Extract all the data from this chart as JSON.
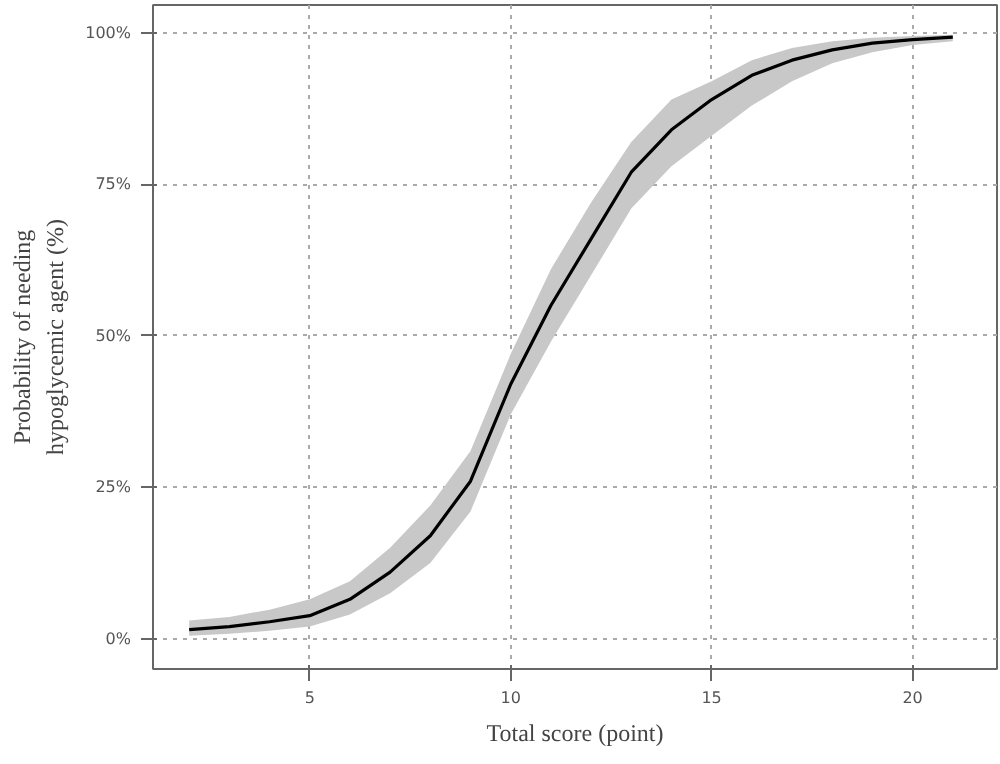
{
  "chart_data": {
    "type": "line",
    "xlabel": "Total score (point)",
    "ylabel": "Probability of needing\nhypoglycemic agent (%)",
    "xlim": [
      1.1,
      22.1
    ],
    "xticks": [
      5,
      10,
      15,
      20
    ],
    "ylim": [
      -5,
      104.6
    ],
    "yticks": [
      {
        "value": 0,
        "label": "0%"
      },
      {
        "value": 25,
        "label": "25%"
      },
      {
        "value": 50,
        "label": "50%"
      },
      {
        "value": 75,
        "label": "75%"
      },
      {
        "value": 100,
        "label": "100%"
      }
    ],
    "grid": true,
    "marker": "none",
    "line_style": "solid",
    "series": [
      {
        "color": "#000000",
        "x": [
          2,
          3,
          4,
          5,
          6,
          7,
          8,
          9,
          10,
          11,
          12,
          13,
          14,
          15,
          16,
          17,
          18,
          19,
          20,
          21
        ],
        "values": [
          1.5,
          2.0,
          2.8,
          3.8,
          6.5,
          11,
          17,
          26,
          42,
          55,
          66,
          77,
          84,
          89,
          93,
          95.5,
          97.2,
          98.3,
          98.9,
          99.3
        ],
        "lower": [
          0.5,
          0.8,
          1.3,
          2.0,
          4.0,
          7.5,
          12.5,
          21,
          37,
          49,
          60,
          71,
          78,
          83,
          88,
          92,
          95,
          96.8,
          98,
          98.6
        ],
        "upper": [
          3.0,
          3.6,
          4.8,
          6.5,
          9.5,
          15,
          22,
          31,
          47,
          61,
          72,
          82,
          89,
          92,
          95.5,
          97.5,
          98.6,
          99.2,
          99.5,
          99.7
        ]
      }
    ]
  }
}
